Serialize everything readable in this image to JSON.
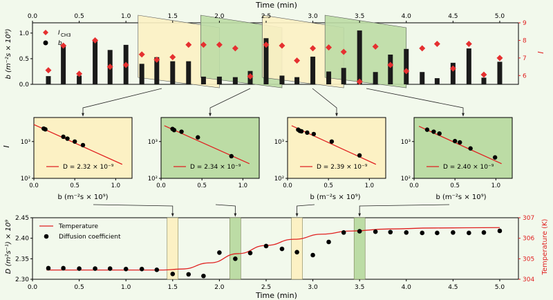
{
  "colors": {
    "background": "#f2f9ec",
    "bar": "#1a1a1a",
    "marker": "#e53030",
    "line": "#e02020",
    "yellow": "#fcf1c4",
    "green": "#bcdca5",
    "fit": "#e02020"
  },
  "chart_data": [
    {
      "id": "top",
      "type": "bar",
      "xlabel": "Time (min)",
      "ylabel": "b (m⁻²s × 10⁹)",
      "y2label": "I",
      "xlim": [
        0,
        5.2
      ],
      "ylim": [
        0,
        1.2
      ],
      "y2lim": [
        5.5,
        9
      ],
      "xticks": [
        "0.0",
        "0.5",
        "1.0",
        "1.5",
        "2.0",
        "2.5",
        "3.0",
        "3.5",
        "4.0",
        "4.5",
        "5.0"
      ],
      "yticks": [
        "0.0",
        "0.5",
        "1.0"
      ],
      "y2ticks": [
        "6",
        "7",
        "8",
        "9"
      ],
      "legend": [
        "I_CH3",
        "b"
      ],
      "legend_I_main": "I",
      "legend_I_sub": "CH3",
      "legend_b": "b",
      "times": [
        0.17,
        0.33,
        0.5,
        0.67,
        0.83,
        1.0,
        1.17,
        1.33,
        1.5,
        1.67,
        1.83,
        2.0,
        2.17,
        2.33,
        2.5,
        2.67,
        2.83,
        3.0,
        3.17,
        3.33,
        3.5,
        3.67,
        3.83,
        4.0,
        4.17,
        4.33,
        4.5,
        4.67,
        4.83,
        5.0
      ],
      "b_values": [
        0.16,
        0.76,
        0.17,
        0.87,
        0.67,
        0.77,
        0.4,
        0.53,
        0.45,
        0.45,
        0.15,
        0.15,
        0.14,
        0.26,
        0.9,
        0.17,
        0.14,
        0.54,
        0.25,
        0.32,
        1.05,
        0.24,
        0.58,
        0.69,
        0.24,
        0.12,
        0.42,
        0.7,
        0.13,
        0.44
      ],
      "I_values": [
        6.3,
        7.7,
        6.1,
        8.0,
        6.5,
        6.6,
        7.2,
        6.9,
        7.05,
        7.75,
        7.75,
        7.75,
        7.55,
        5.95,
        7.75,
        7.7,
        6.85,
        7.55,
        7.6,
        7.35,
        5.65,
        7.65,
        6.6,
        6.25,
        7.55,
        7.8,
        6.4,
        7.8,
        6.05,
        7.0
      ]
    },
    {
      "id": "fit1",
      "type": "scatter",
      "ylabel": "I",
      "xlabel": "b (m⁻²s × 10⁹)",
      "xlim": [
        0,
        1.2
      ],
      "xticks": [
        "0.0",
        "0.5",
        "1.0"
      ],
      "yticks": [
        "10²",
        "10³"
      ],
      "points": [
        [
          0.12,
          2250
        ],
        [
          0.14,
          2150
        ],
        [
          0.36,
          1350
        ],
        [
          0.41,
          1200
        ],
        [
          0.5,
          1000
        ],
        [
          0.6,
          800
        ]
      ],
      "fit": [
        [
          0.0,
          2900
        ],
        [
          1.08,
          240
        ]
      ],
      "legend": "D = 2.32 × 10⁻⁹",
      "bg": "yellow"
    },
    {
      "id": "fit2",
      "type": "scatter",
      "xticks": [
        "0.0",
        "0.5",
        "1.0"
      ],
      "yticks": [
        "10²",
        "10³"
      ],
      "xlabel": "",
      "points": [
        [
          0.14,
          2200
        ],
        [
          0.16,
          2050
        ],
        [
          0.25,
          1850
        ],
        [
          0.45,
          1300
        ],
        [
          0.86,
          400
        ]
      ],
      "fit": [
        [
          0.04,
          2700
        ],
        [
          1.08,
          250
        ]
      ],
      "legend": "D = 2.34 × 10⁻⁹",
      "bg": "green"
    },
    {
      "id": "fit3",
      "type": "scatter",
      "xticks": [
        "0.0",
        "0.5",
        "1.0"
      ],
      "yticks": [
        "10²",
        "10³"
      ],
      "xlabel": "b (m⁻²s × 10⁹)",
      "points": [
        [
          0.13,
          2100
        ],
        [
          0.15,
          1950
        ],
        [
          0.17,
          1900
        ],
        [
          0.24,
          1750
        ],
        [
          0.32,
          1600
        ],
        [
          0.54,
          1000
        ],
        [
          0.88,
          420
        ]
      ],
      "fit": [
        [
          0.05,
          2700
        ],
        [
          1.08,
          240
        ]
      ],
      "legend": "D = 2.39 × 10⁻⁹",
      "bg": "yellow"
    },
    {
      "id": "fit4",
      "type": "scatter",
      "xticks": [
        "0.0",
        "0.5",
        "1.0"
      ],
      "yticks": [
        "10²",
        "10³"
      ],
      "xlabel": "b (m⁻²s × 10⁹)",
      "points": [
        [
          0.16,
          2100
        ],
        [
          0.24,
          1850
        ],
        [
          0.31,
          1650
        ],
        [
          0.5,
          1030
        ],
        [
          0.56,
          950
        ],
        [
          0.69,
          650
        ],
        [
          0.99,
          370
        ]
      ],
      "fit": [
        [
          0.06,
          2600
        ],
        [
          1.07,
          250
        ]
      ],
      "legend": "D = 2.40 × 10⁻⁹",
      "bg": "green"
    },
    {
      "id": "bottom",
      "type": "line",
      "xlabel": "Time (min)",
      "ylabel": "D (m²s⁻¹) × 10⁹",
      "y2label": "Temperature (K)",
      "xlim": [
        0,
        5.2
      ],
      "ylim": [
        2.3,
        2.45
      ],
      "y2lim": [
        304,
        307
      ],
      "xticks": [
        "0.0",
        "0.5",
        "1.0",
        "1.5",
        "2.0",
        "2.5",
        "3.0",
        "3.5",
        "4.0",
        "4.5",
        "5.0"
      ],
      "yticks": [
        "2.30",
        "2.35",
        "2.40",
        "2.45"
      ],
      "y2ticks": [
        "304",
        "305",
        "306",
        "307"
      ],
      "legend_temp": "Temperature",
      "legend_diff": "Diffusion coefficient",
      "times": [
        0.17,
        0.33,
        0.5,
        0.67,
        0.83,
        1.0,
        1.17,
        1.33,
        1.5,
        1.67,
        1.83,
        2.0,
        2.17,
        2.33,
        2.5,
        2.67,
        2.83,
        3.0,
        3.17,
        3.33,
        3.5,
        3.67,
        3.83,
        4.0,
        4.17,
        4.33,
        4.5,
        4.67,
        4.83,
        5.0
      ],
      "D_values": [
        2.327,
        2.327,
        2.326,
        2.326,
        2.326,
        2.325,
        2.325,
        2.323,
        2.313,
        2.312,
        2.308,
        2.365,
        2.35,
        2.364,
        2.381,
        2.374,
        2.366,
        2.359,
        2.391,
        2.414,
        2.417,
        2.416,
        2.415,
        2.414,
        2.413,
        2.413,
        2.414,
        2.413,
        2.414,
        2.418
      ],
      "temp": [
        [
          0.15,
          304.45
        ],
        [
          1.4,
          304.45
        ],
        [
          1.6,
          304.5
        ],
        [
          1.9,
          304.8
        ],
        [
          2.2,
          305.25
        ],
        [
          2.5,
          305.65
        ],
        [
          2.8,
          305.95
        ],
        [
          3.1,
          306.2
        ],
        [
          3.4,
          306.35
        ],
        [
          3.8,
          306.45
        ],
        [
          4.3,
          306.5
        ],
        [
          5.0,
          306.52
        ]
      ]
    }
  ],
  "top_regions": [
    [
      1.5,
      "yellow"
    ],
    [
      2.17,
      "green"
    ],
    [
      2.83,
      "yellow"
    ],
    [
      3.5,
      "green"
    ]
  ],
  "bottom_bands": [
    [
      1.5,
      "yellow"
    ],
    [
      2.17,
      "green"
    ],
    [
      2.83,
      "yellow"
    ],
    [
      3.5,
      "green"
    ]
  ]
}
